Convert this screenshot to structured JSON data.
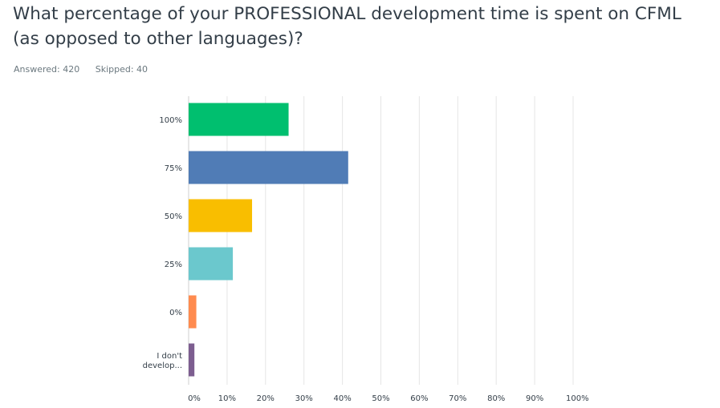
{
  "survey": {
    "question": "What percentage of your PROFESSIONAL development time is spent on CFML (as opposed to other languages)?",
    "answered": "Answered: 420",
    "skipped": "Skipped: 40"
  },
  "chart_data": {
    "type": "bar",
    "orientation": "horizontal",
    "categories": [
      "100%",
      "75%",
      "50%",
      "25%",
      "0%",
      "I don't develop..."
    ],
    "category_lines": [
      [
        "100%"
      ],
      [
        "75%"
      ],
      [
        "50%"
      ],
      [
        "25%"
      ],
      [
        "0%"
      ],
      [
        "I don't",
        "develop..."
      ]
    ],
    "values": [
      26,
      41.5,
      16.5,
      11.5,
      2,
      1.5
    ],
    "colors": [
      "#00bf6f",
      "#507cb6",
      "#f9be00",
      "#6bc8cd",
      "#ff8b4f",
      "#7d5e90"
    ],
    "xlim": [
      0,
      100
    ],
    "x_ticks": [
      "0%",
      "10%",
      "20%",
      "30%",
      "40%",
      "50%",
      "60%",
      "70%",
      "80%",
      "90%",
      "100%"
    ],
    "grid": true,
    "grid_color": "#e5e5e5",
    "legend": "none"
  }
}
